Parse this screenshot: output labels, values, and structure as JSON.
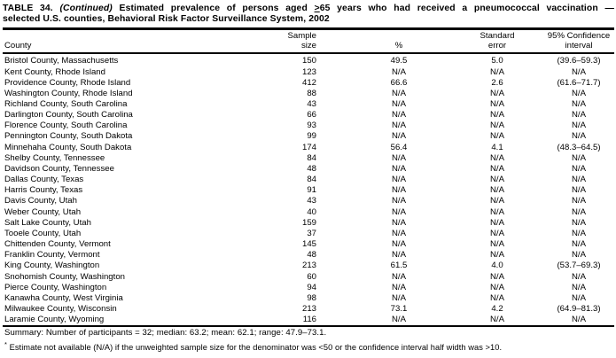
{
  "title": {
    "table_label": "TABLE 34.",
    "continued": "(Continued)",
    "before_geq": "Estimated prevalence of persons aged",
    "geq_symbol": ">",
    "after_geq": "65 years who had received a pneumococcal vaccination —",
    "line2": "selected U.S. counties, Behavioral Risk Factor Surveillance System, 2002"
  },
  "table": {
    "headers": {
      "county": "County",
      "sample_line1": "Sample",
      "sample_line2": "size",
      "percent": "%",
      "se_line1": "Standard",
      "se_line2": "error",
      "ci_line1": "95% Confidence",
      "ci_line2": "interval"
    },
    "rows": [
      {
        "county": "Bristol County, Massachusetts",
        "sample_size": "150",
        "pct": "49.5",
        "std_error": "5.0",
        "ci": "(39.6–59.3)"
      },
      {
        "county": "Kent County, Rhode Island",
        "sample_size": "123",
        "pct": "N/A",
        "std_error": "N/A",
        "ci": "N/A"
      },
      {
        "county": "Providence County, Rhode Island",
        "sample_size": "412",
        "pct": "66.6",
        "std_error": "2.6",
        "ci": "(61.6–71.7)"
      },
      {
        "county": "Washington County, Rhode Island",
        "sample_size": "88",
        "pct": "N/A",
        "std_error": "N/A",
        "ci": "N/A"
      },
      {
        "county": "Richland County, South Carolina",
        "sample_size": "43",
        "pct": "N/A",
        "std_error": "N/A",
        "ci": "N/A"
      },
      {
        "county": "Darlington County, South Carolina",
        "sample_size": "66",
        "pct": "N/A",
        "std_error": "N/A",
        "ci": "N/A"
      },
      {
        "county": "Florence County, South Carolina",
        "sample_size": "93",
        "pct": "N/A",
        "std_error": "N/A",
        "ci": "N/A"
      },
      {
        "county": "Pennington County, South Dakota",
        "sample_size": "99",
        "pct": "N/A",
        "std_error": "N/A",
        "ci": "N/A"
      },
      {
        "county": "Minnehaha County, South Dakota",
        "sample_size": "174",
        "pct": "56.4",
        "std_error": "4.1",
        "ci": "(48.3–64.5)"
      },
      {
        "county": "Shelby County, Tennessee",
        "sample_size": "84",
        "pct": "N/A",
        "std_error": "N/A",
        "ci": "N/A"
      },
      {
        "county": "Davidson County, Tennessee",
        "sample_size": "48",
        "pct": "N/A",
        "std_error": "N/A",
        "ci": "N/A"
      },
      {
        "county": "Dallas County, Texas",
        "sample_size": "84",
        "pct": "N/A",
        "std_error": "N/A",
        "ci": "N/A"
      },
      {
        "county": "Harris County, Texas",
        "sample_size": "91",
        "pct": "N/A",
        "std_error": "N/A",
        "ci": "N/A"
      },
      {
        "county": "Davis County, Utah",
        "sample_size": "43",
        "pct": "N/A",
        "std_error": "N/A",
        "ci": "N/A"
      },
      {
        "county": "Weber County, Utah",
        "sample_size": "40",
        "pct": "N/A",
        "std_error": "N/A",
        "ci": "N/A"
      },
      {
        "county": "Salt Lake County, Utah",
        "sample_size": "159",
        "pct": "N/A",
        "std_error": "N/A",
        "ci": "N/A"
      },
      {
        "county": "Tooele County, Utah",
        "sample_size": "37",
        "pct": "N/A",
        "std_error": "N/A",
        "ci": "N/A"
      },
      {
        "county": "Chittenden County, Vermont",
        "sample_size": "145",
        "pct": "N/A",
        "std_error": "N/A",
        "ci": "N/A"
      },
      {
        "county": "Franklin County, Vermont",
        "sample_size": "48",
        "pct": "N/A",
        "std_error": "N/A",
        "ci": "N/A"
      },
      {
        "county": "King County, Washington",
        "sample_size": "213",
        "pct": "61.5",
        "std_error": "4.0",
        "ci": "(53.7–69.3)"
      },
      {
        "county": "Snohomish County, Washington",
        "sample_size": "60",
        "pct": "N/A",
        "std_error": "N/A",
        "ci": "N/A"
      },
      {
        "county": "Pierce County, Washington",
        "sample_size": "94",
        "pct": "N/A",
        "std_error": "N/A",
        "ci": "N/A"
      },
      {
        "county": "Kanawha County, West Virginia",
        "sample_size": "98",
        "pct": "N/A",
        "std_error": "N/A",
        "ci": "N/A"
      },
      {
        "county": "Milwaukee County, Wisconsin",
        "sample_size": "213",
        "pct": "73.1",
        "std_error": "4.2",
        "ci": "(64.9–81.3)"
      },
      {
        "county": "Laramie County, Wyoming",
        "sample_size": "116",
        "pct": "N/A",
        "std_error": "N/A",
        "ci": "N/A"
      }
    ]
  },
  "footer": {
    "summary": "Summary: Number of participants = 32; median: 63.2; mean: 62.1; range: 47.9–73.1.",
    "note_marker": "*",
    "note_text": "Estimate not available (N/A) if the unweighted sample size for the denominator was <50 or the confidence interval half width was >10."
  }
}
